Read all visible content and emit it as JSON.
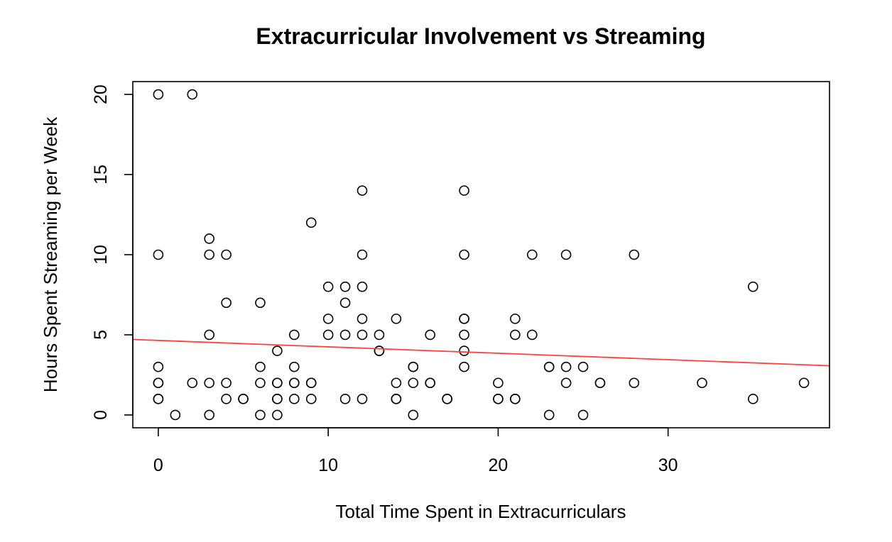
{
  "chart_data": {
    "type": "scatter",
    "title": "Extracurricular Involvement vs Streaming",
    "xlabel": "Total Time Spent in Extracurriculars",
    "ylabel": "Hours Spent Streaming per Week",
    "xlim": [
      -1.5,
      39.5
    ],
    "ylim": [
      -0.8,
      20.8
    ],
    "x_ticks": [
      0,
      10,
      20,
      30
    ],
    "y_ticks": [
      0,
      5,
      10,
      15,
      20
    ],
    "grid": false,
    "point_color": "#000000",
    "trend_line": {
      "color": "#ff4040",
      "intercept": 4.65,
      "slope": -0.04
    },
    "points": [
      [
        0,
        20
      ],
      [
        2,
        20
      ],
      [
        0,
        10
      ],
      [
        0,
        3
      ],
      [
        0,
        2
      ],
      [
        0,
        2
      ],
      [
        0,
        1
      ],
      [
        0,
        1
      ],
      [
        1,
        0
      ],
      [
        2,
        2
      ],
      [
        3,
        11
      ],
      [
        3,
        10
      ],
      [
        3,
        5
      ],
      [
        3,
        2
      ],
      [
        3,
        0
      ],
      [
        4,
        10
      ],
      [
        4,
        7
      ],
      [
        4,
        2
      ],
      [
        4,
        1
      ],
      [
        5,
        1
      ],
      [
        5,
        1
      ],
      [
        6,
        7
      ],
      [
        6,
        3
      ],
      [
        6,
        2
      ],
      [
        6,
        0
      ],
      [
        7,
        4
      ],
      [
        7,
        2
      ],
      [
        7,
        2
      ],
      [
        7,
        1
      ],
      [
        7,
        1
      ],
      [
        7,
        0
      ],
      [
        8,
        5
      ],
      [
        8,
        3
      ],
      [
        8,
        2
      ],
      [
        8,
        2
      ],
      [
        8,
        1
      ],
      [
        9,
        12
      ],
      [
        9,
        2
      ],
      [
        9,
        2
      ],
      [
        9,
        1
      ],
      [
        10,
        8
      ],
      [
        10,
        6
      ],
      [
        10,
        5
      ],
      [
        11,
        8
      ],
      [
        11,
        7
      ],
      [
        11,
        5
      ],
      [
        11,
        1
      ],
      [
        12,
        14
      ],
      [
        12,
        10
      ],
      [
        12,
        8
      ],
      [
        12,
        6
      ],
      [
        12,
        5
      ],
      [
        12,
        1
      ],
      [
        13,
        5
      ],
      [
        13,
        4
      ],
      [
        13,
        4
      ],
      [
        14,
        6
      ],
      [
        14,
        2
      ],
      [
        14,
        1
      ],
      [
        14,
        1
      ],
      [
        15,
        3
      ],
      [
        15,
        3
      ],
      [
        15,
        2
      ],
      [
        15,
        0
      ],
      [
        16,
        5
      ],
      [
        16,
        2
      ],
      [
        16,
        2
      ],
      [
        17,
        1
      ],
      [
        17,
        1
      ],
      [
        18,
        14
      ],
      [
        18,
        10
      ],
      [
        18,
        6
      ],
      [
        18,
        6
      ],
      [
        18,
        5
      ],
      [
        18,
        4
      ],
      [
        18,
        3
      ],
      [
        20,
        2
      ],
      [
        20,
        1
      ],
      [
        20,
        1
      ],
      [
        21,
        6
      ],
      [
        21,
        5
      ],
      [
        21,
        1
      ],
      [
        21,
        1
      ],
      [
        22,
        10
      ],
      [
        22,
        5
      ],
      [
        23,
        3
      ],
      [
        23,
        3
      ],
      [
        23,
        0
      ],
      [
        24,
        10
      ],
      [
        24,
        3
      ],
      [
        24,
        2
      ],
      [
        25,
        3
      ],
      [
        25,
        0
      ],
      [
        26,
        2
      ],
      [
        26,
        2
      ],
      [
        28,
        10
      ],
      [
        28,
        2
      ],
      [
        32,
        2
      ],
      [
        35,
        8
      ],
      [
        35,
        1
      ],
      [
        38,
        2
      ]
    ]
  }
}
